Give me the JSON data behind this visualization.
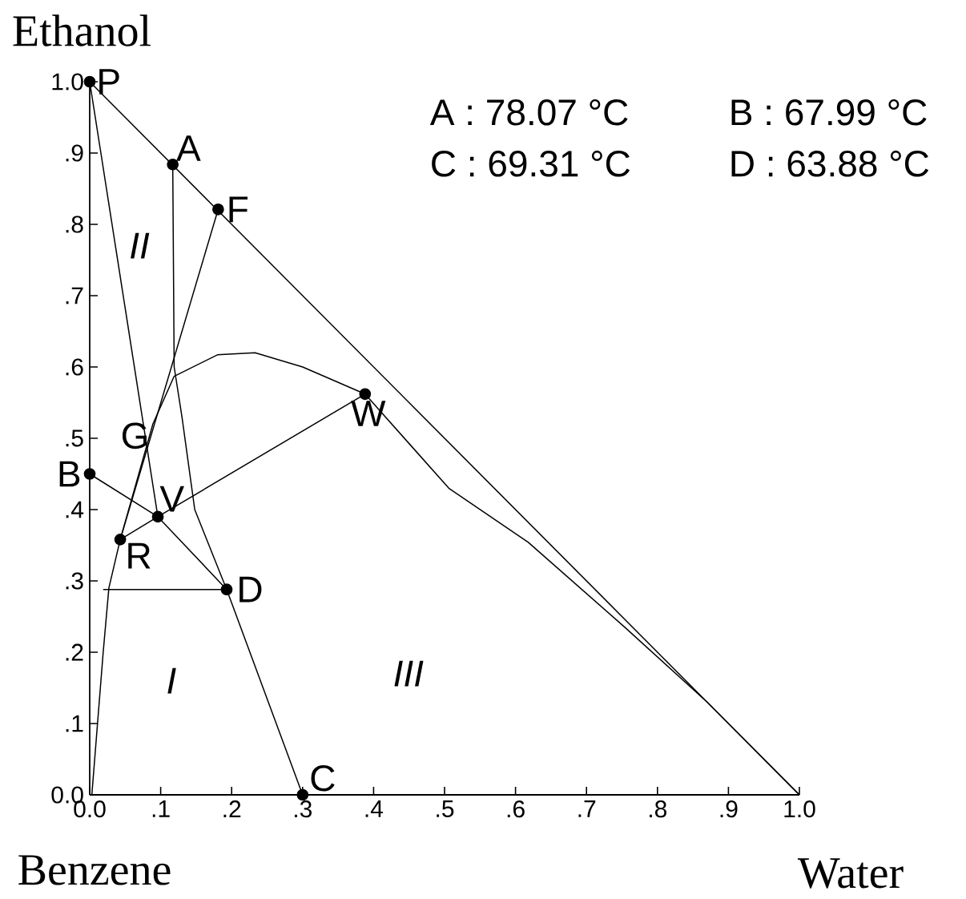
{
  "chart_data": {
    "type": "line",
    "ylabel": "Ethanol",
    "xlabel": "Water",
    "line_style": "solid",
    "xlim": [
      0,
      1
    ],
    "ylim": [
      0,
      1
    ],
    "xticks": [
      {
        "value": 0,
        "label": "0.0"
      },
      {
        "value": 0.1,
        "label": ".1"
      },
      {
        "value": 0.2,
        "label": ".2"
      },
      {
        "value": 0.3,
        "label": ".3"
      },
      {
        "value": 0.4,
        "label": ".4"
      },
      {
        "value": 0.5,
        "label": ".5"
      },
      {
        "value": 0.6,
        "label": ".6"
      },
      {
        "value": 0.7,
        "label": ".7"
      },
      {
        "value": 0.8,
        "label": ".8"
      },
      {
        "value": 0.9,
        "label": ".9"
      },
      {
        "value": 1,
        "label": "1.0"
      }
    ],
    "yticks": [
      {
        "value": 0,
        "label": "0.0"
      },
      {
        "value": 0.1,
        "label": ".1"
      },
      {
        "value": 0.2,
        "label": ".2"
      },
      {
        "value": 0.3,
        "label": ".3"
      },
      {
        "value": 0.4,
        "label": ".4"
      },
      {
        "value": 0.5,
        "label": ".5"
      },
      {
        "value": 0.6,
        "label": ".6"
      },
      {
        "value": 0.7,
        "label": ".7"
      },
      {
        "value": 0.8,
        "label": ".8"
      },
      {
        "value": 0.9,
        "label": ".9"
      },
      {
        "value": 1,
        "label": "1.0"
      }
    ],
    "series": [
      {
        "color": "#000000",
        "x": [
          0,
          1
        ],
        "values": [
          1,
          0
        ]
      },
      {
        "color": "#000000",
        "x": [
          0.003,
          0.011,
          0.019,
          0.027,
          0.043,
          0.089,
          0.119,
          0.18,
          0.233,
          0.3,
          0.388,
          0.506,
          0.618,
          0.754,
          0.87,
          1
        ],
        "values": [
          0,
          0.1,
          0.2,
          0.29,
          0.358,
          0.52,
          0.587,
          0.617,
          0.62,
          0.6,
          0.562,
          0.43,
          0.354,
          0.235,
          0.13,
          0
        ]
      },
      {
        "color": "#000000",
        "x": [
          0,
          0.096
        ],
        "values": [
          1,
          0.39
        ]
      },
      {
        "color": "#000000",
        "x": [
          0.117,
          0.119,
          0.13,
          0.148,
          0.193,
          0.3
        ],
        "values": [
          0.884,
          0.6,
          0.53,
          0.4,
          0.288,
          0
        ]
      },
      {
        "color": "#000000",
        "x": [
          0.181,
          0.043
        ],
        "values": [
          0.821,
          0.358
        ]
      },
      {
        "color": "#000000",
        "x": [
          0,
          0.096,
          0.193
        ],
        "values": [
          0.45,
          0.39,
          0.288
        ]
      },
      {
        "color": "#000000",
        "x": [
          0.043,
          0.096,
          0.388
        ],
        "values": [
          0.358,
          0.39,
          0.562
        ]
      },
      {
        "color": "#000000",
        "x": [
          0.019,
          0.193
        ],
        "values": [
          0.288,
          0.288
        ]
      },
      {
        "type": "scatter",
        "marker": "circle",
        "color": "#000000",
        "x": [
          0,
          0.117,
          0.181,
          0.388,
          0,
          0.096,
          0.043,
          0.193,
          0.3
        ],
        "values": [
          1,
          0.884,
          0.821,
          0.562,
          0.45,
          0.39,
          0.358,
          0.288,
          0
        ]
      }
    ],
    "annotations": [
      {
        "text": "P",
        "x": 0,
        "y": 1
      },
      {
        "text": "A",
        "x": 0.117,
        "y": 0.884
      },
      {
        "text": "F",
        "x": 0.181,
        "y": 0.821
      },
      {
        "text": "W",
        "x": 0.388,
        "y": 0.562
      },
      {
        "text": "G",
        "x": 0.089,
        "y": 0.52
      },
      {
        "text": "B",
        "x": 0,
        "y": 0.45
      },
      {
        "text": "V",
        "x": 0.096,
        "y": 0.39
      },
      {
        "text": "R",
        "x": 0.043,
        "y": 0.358
      },
      {
        "text": "D",
        "x": 0.193,
        "y": 0.288
      },
      {
        "text": "C",
        "x": 0.3,
        "y": 0
      },
      "II",
      "I",
      "III",
      "A : 78.07 °C",
      "B : 67.99 °C",
      "C : 69.31 °C",
      "D : 63.88 °C",
      "Benzene"
    ]
  }
}
